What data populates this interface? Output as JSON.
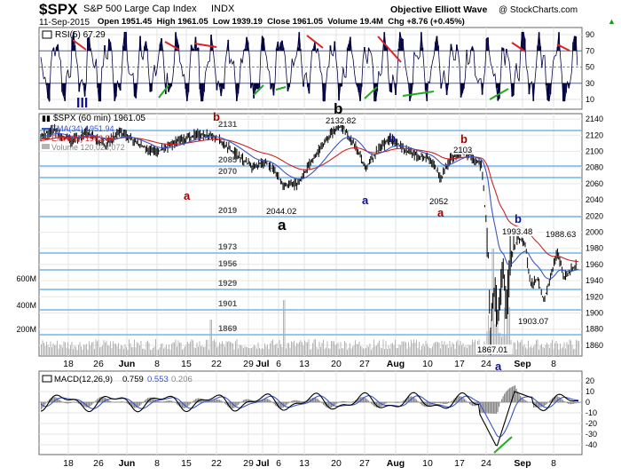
{
  "header": {
    "symbol": "$SPX",
    "name": "S&P 500 Large Cap Index",
    "exchange": "INDX",
    "date": "11-Sep-2015",
    "quote": "Open 1951.45  High 1961.05  Low 1939.19  Close 1961.05  Volume 19.4M  Chg +8.76 (+0.45%)",
    "chg_arrow": "▲",
    "watermark": "Objective Elliott Wave",
    "credit": "@ StockCharts.com"
  },
  "colors": {
    "background": "#ffffff",
    "price": "#000000",
    "ema34": "#3b55c8",
    "ema89": "#cc2222",
    "support_lines": "#78b4e6",
    "volume": "#b4b4b4",
    "rsi_fill": "#000040",
    "rsi_ref": "#4a5cc0",
    "trend_red": "#dd2222",
    "trend_green": "#22aa22",
    "wave_red": "#a00000",
    "wave_blue": "#101090",
    "macd": "#000000",
    "macd_signal": "#3b55c8",
    "histogram": "#888888",
    "macd_upper_fill": "#444444"
  },
  "rsi_panel": {
    "legend": "RSI(5) 67.29",
    "wave_label": "III",
    "ticks": [
      "90",
      "70",
      "50",
      "30",
      "10"
    ]
  },
  "price_panel": {
    "legend_price": "$SPX (60 min) 1961.05",
    "legend_ema34": "EMA(34) 1951.94",
    "legend_ema89": "EMA(89) 1962.84",
    "legend_volume": "Volume 120,023,072",
    "y_ticks": [
      "2140",
      "2120",
      "2100",
      "2080",
      "2060",
      "2040",
      "2020",
      "2000",
      "1980",
      "1960",
      "1940",
      "1920",
      "1900",
      "1880",
      "1860"
    ],
    "volume_ticks": [
      "600M",
      "400M",
      "200M"
    ],
    "support_levels": [
      "2131",
      "2085",
      "2070",
      "2019",
      "1973",
      "1956",
      "1929",
      "1901",
      "1869"
    ],
    "price_labels": [
      "2132.82",
      "2044.02",
      "2103",
      "2052",
      "1993.48",
      "1988.63",
      "1903.07",
      "1867.01"
    ],
    "wave_labels": {
      "b_red_1": "b",
      "a_red_1": "a",
      "a_black": "a",
      "b_black": "b",
      "b_blue_1": "b",
      "a_blue_1": "a",
      "b_red_2": "b",
      "a_red_2": "a",
      "b_blue_2": "b",
      "a_blue_2": "a"
    }
  },
  "macd_panel": {
    "legend_label": "MACD(12,26,9)",
    "legend_macd": "0.759",
    "legend_signal": "0.553",
    "legend_hist": "0.206",
    "ticks": [
      "20",
      "10",
      "0",
      "-10",
      "-20",
      "-30",
      "-40"
    ]
  },
  "x_axis": {
    "labels": [
      "18",
      "26",
      "Jun",
      "8",
      "15",
      "22",
      "29",
      "Jul",
      "6",
      "13",
      "20",
      "27",
      "Aug",
      "10",
      "17",
      "24",
      "Sep",
      "8"
    ]
  },
  "chart_data": {
    "type": "line",
    "title": "$SPX S&P 500 Large Cap Index INDX",
    "interval": "60 min",
    "ylim": [
      1850,
      2150
    ],
    "rsi_ylim": [
      0,
      100
    ],
    "macd_ylim": [
      -45,
      25
    ],
    "x": [
      "May 18",
      "May 26",
      "Jun 1",
      "Jun 8",
      "Jun 15",
      "Jun 22",
      "Jun 29",
      "Jul 6",
      "Jul 13",
      "Jul 20",
      "Jul 27",
      "Aug 3",
      "Aug 10",
      "Aug 17",
      "Aug 24",
      "Sep 1",
      "Sep 8",
      "Sep 11"
    ],
    "series": [
      {
        "name": "$SPX (60 min)",
        "values": [
          2126,
          2120,
          2115,
          2095,
          2098,
          2120,
          2070,
          2065,
          2105,
          2130,
          2085,
          2100,
          2085,
          2095,
          1875,
          1915,
          1930,
          1961
        ]
      },
      {
        "name": "EMA(34)",
        "values": [
          2118,
          2121,
          2118,
          2100,
          2100,
          2116,
          2082,
          2078,
          2100,
          2125,
          2092,
          2100,
          2090,
          2095,
          1960,
          1930,
          1940,
          1951.94
        ]
      },
      {
        "name": "EMA(89)",
        "values": [
          2112,
          2115,
          2116,
          2110,
          2105,
          2110,
          2096,
          2090,
          2095,
          2108,
          2100,
          2100,
          2096,
          2090,
          2020,
          1975,
          1962,
          1962.84
        ]
      }
    ],
    "rsi": {
      "name": "RSI(5)",
      "last": 67.29
    },
    "macd": {
      "params": "12,26,9",
      "macd": 0.759,
      "signal": 0.553,
      "histogram": 0.206
    },
    "volume": {
      "name": "Volume",
      "last": 120023072
    }
  }
}
